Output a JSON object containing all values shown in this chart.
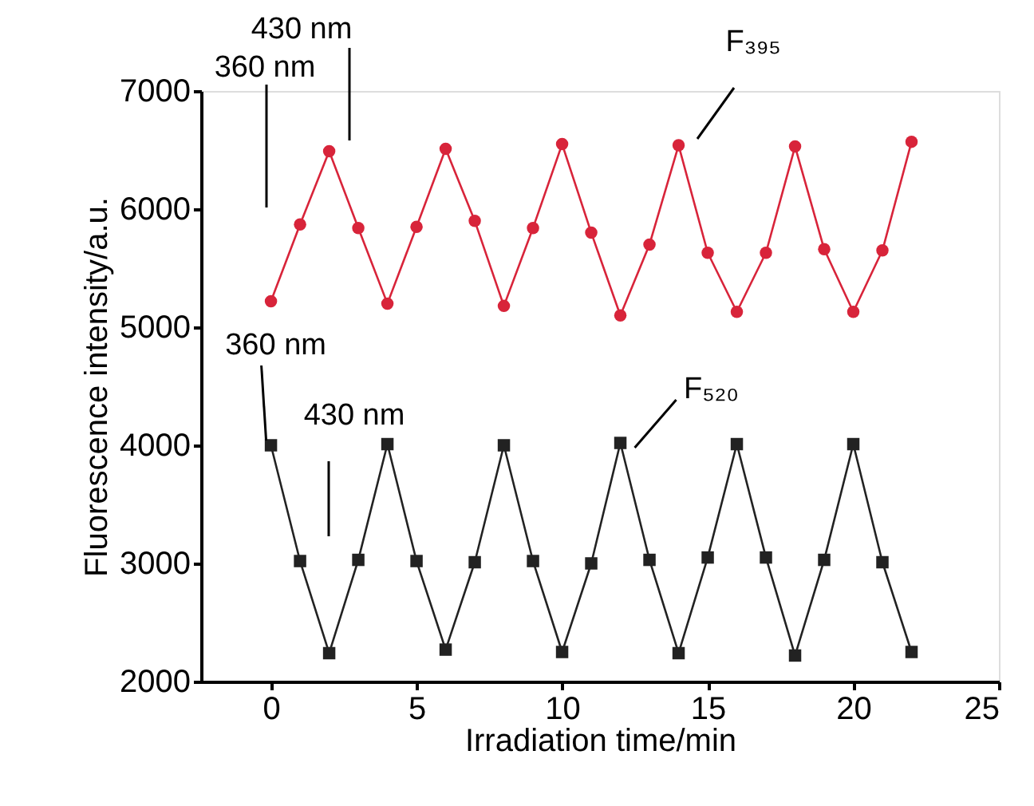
{
  "chart_data": {
    "type": "line",
    "xlabel": "Irradiation time/min",
    "ylabel": "Fluorescence intensity/a.u.",
    "x": [
      0,
      1,
      2,
      3,
      4,
      5,
      6,
      7,
      8,
      9,
      10,
      11,
      12,
      13,
      14,
      15,
      16,
      17,
      18,
      19,
      20,
      21,
      22
    ],
    "series": [
      {
        "color": "#d8243a",
        "marker": "circle",
        "values": [
          5220,
          5870,
          6490,
          5840,
          5200,
          5850,
          6510,
          5900,
          5180,
          5840,
          6550,
          5800,
          5100,
          5700,
          6540,
          5630,
          5130,
          5630,
          6530,
          5660,
          5130,
          5650,
          6570
        ]
      },
      {
        "color": "#222222",
        "marker": "square",
        "values": [
          4000,
          3020,
          2240,
          3030,
          4010,
          3020,
          2270,
          3010,
          4000,
          3020,
          2250,
          3000,
          4020,
          3030,
          2240,
          3050,
          4010,
          3050,
          2220,
          3030,
          4010,
          3010,
          2250
        ]
      }
    ],
    "xlim": [
      -2.4,
      25
    ],
    "xticks": [
      0,
      5,
      10,
      15,
      20,
      25
    ],
    "ylim": [
      2000,
      7000
    ],
    "yticks": [
      2000,
      3000,
      4000,
      5000,
      6000,
      7000
    ],
    "grid": false,
    "annotations": [
      "360 nm",
      "430 nm",
      "F₃₉₅",
      {
        "text": "360 nm",
        "x": 0,
        "y": 4000
      },
      "430 nm",
      {
        "text": "F₅₂₀",
        "x": 12,
        "y": 4020
      }
    ]
  }
}
